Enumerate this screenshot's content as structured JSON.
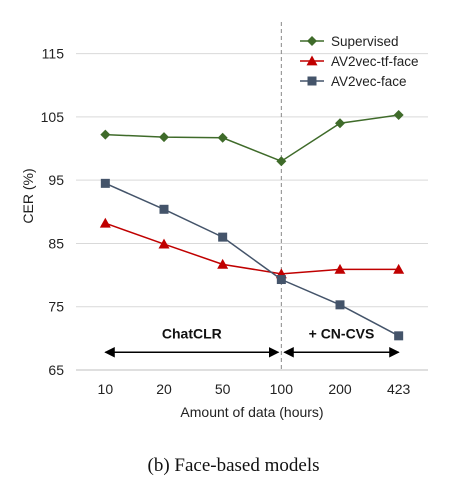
{
  "caption": "(b) Face-based models",
  "chart_data": {
    "type": "line",
    "categories": [
      "10",
      "20",
      "50",
      "100",
      "200",
      "423"
    ],
    "xlabel": "Amount of data (hours)",
    "ylabel": "CER (%)",
    "ylim": [
      65,
      120
    ],
    "yticks": [
      65,
      75,
      85,
      95,
      105,
      115
    ],
    "grid": "horizontal",
    "legend_position": "top-right",
    "divider_at_category": "100",
    "series": [
      {
        "name": "Supervised",
        "color": "#3f6b2a",
        "marker": "diamond",
        "values": [
          102.2,
          101.8,
          101.7,
          98.0,
          104.0,
          105.3
        ]
      },
      {
        "name": "AV2vec-tf-face",
        "color": "#c00000",
        "marker": "triangle",
        "values": [
          88.2,
          84.9,
          81.7,
          80.2,
          80.9,
          80.9
        ]
      },
      {
        "name": "AV2vec-face",
        "color": "#44546a",
        "marker": "square",
        "values": [
          94.5,
          90.4,
          86.0,
          79.3,
          75.3,
          70.4
        ]
      }
    ],
    "annotations": [
      {
        "text": "ChatCLR",
        "from": "10",
        "to": "100"
      },
      {
        "text": "+ CN-CVS",
        "from": "100",
        "to": "423"
      }
    ]
  }
}
